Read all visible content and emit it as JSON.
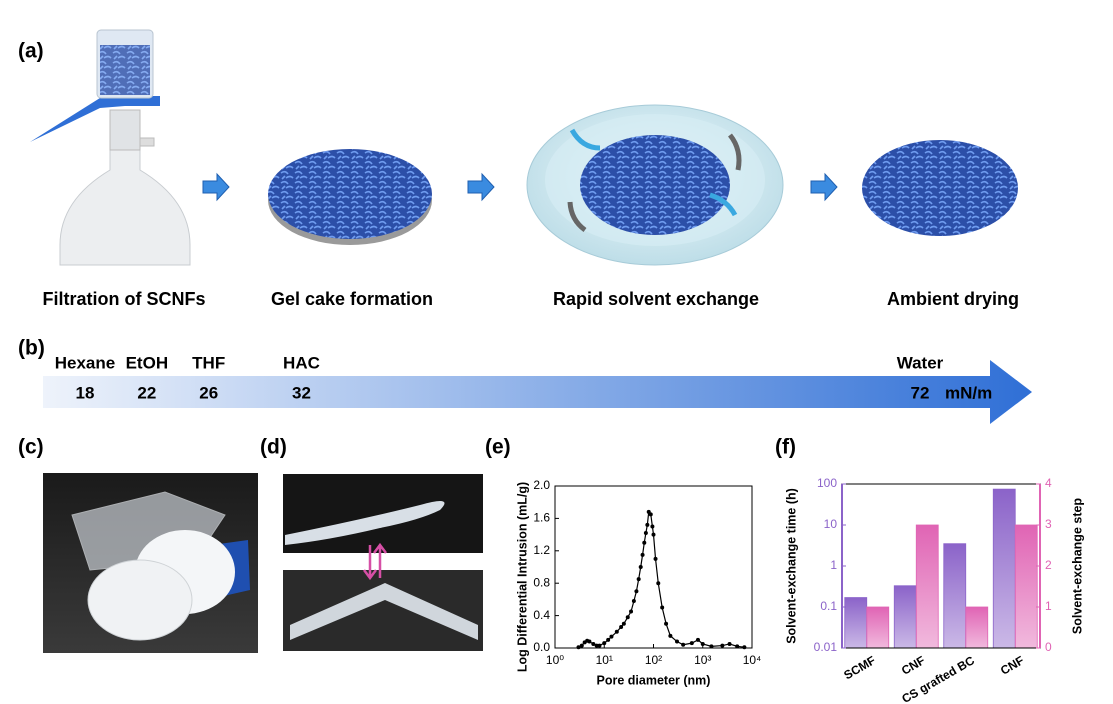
{
  "panels": {
    "a": {
      "label": "(a)",
      "steps": [
        "Filtration of SCNFs",
        "Gel cake formation",
        "Rapid solvent exchange",
        "Ambient drying"
      ]
    },
    "b": {
      "label": "(b)",
      "solvents": [
        "Hexane",
        "EtOH",
        "THF",
        "HAC",
        "Water"
      ],
      "surface_tension": [
        18,
        22,
        26,
        32,
        72
      ],
      "unit": "mN/m"
    },
    "c": {
      "label": "(c)"
    },
    "d": {
      "label": "(d)"
    },
    "e": {
      "label": "(e)"
    },
    "f": {
      "label": "(f)"
    }
  },
  "chart_data": [
    {
      "type": "line",
      "xlabel": "Pore diameter (nm)",
      "ylabel": "Log Differential Intrusion (mL/g)",
      "xscale": "log",
      "color": "#000000",
      "x": [
        3,
        3.5,
        4,
        4.5,
        5,
        6,
        7,
        8,
        10,
        12,
        14,
        18,
        22,
        25,
        30,
        35,
        40,
        45,
        50,
        55,
        60,
        65,
        70,
        75,
        80,
        88,
        95,
        100,
        110,
        125,
        150,
        180,
        220,
        300,
        400,
        600,
        800,
        1000,
        1500,
        2500,
        3500,
        5000,
        7000
      ],
      "values": [
        0.01,
        0.03,
        0.07,
        0.09,
        0.08,
        0.05,
        0.03,
        0.03,
        0.06,
        0.1,
        0.14,
        0.2,
        0.26,
        0.3,
        0.38,
        0.45,
        0.58,
        0.7,
        0.85,
        1.0,
        1.15,
        1.3,
        1.42,
        1.52,
        1.68,
        1.65,
        1.5,
        1.4,
        1.1,
        0.8,
        0.5,
        0.3,
        0.15,
        0.08,
        0.04,
        0.06,
        0.1,
        0.05,
        0.02,
        0.03,
        0.05,
        0.02,
        0.01
      ],
      "xlim": [
        1,
        10000
      ],
      "xticks": [
        {
          "value": 1,
          "label": "10⁰"
        },
        {
          "value": 10,
          "label": "10¹"
        },
        {
          "value": 100,
          "label": "10²"
        },
        {
          "value": 1000,
          "label": "10³"
        },
        {
          "value": 10000,
          "label": "10⁴"
        }
      ],
      "ylim": [
        0,
        2
      ],
      "yticks": [
        {
          "value": 0,
          "label": "0.0"
        },
        0.4,
        0.8,
        1.2,
        1.6,
        {
          "value": 2,
          "label": "2.0"
        }
      ]
    },
    {
      "type": "bar",
      "ylabel": "Solvent-exchange time (h)",
      "y2label": "Solvent-exchange step",
      "yscale": "log",
      "categories": [
        "SCMF",
        "CNF",
        "CS grafted BC",
        "CNF"
      ],
      "series": [
        {
          "color": "#8b63c9",
          "values": [
            0.17,
            0.33,
            3.5,
            75
          ]
        },
        {
          "color": "#e064b4",
          "axis": "y2",
          "values": [
            1,
            3,
            1,
            3
          ]
        }
      ],
      "ylim": [
        0.01,
        100
      ],
      "yticks": [
        0.01,
        0.1,
        1,
        10,
        100
      ],
      "y2lim": [
        0,
        4
      ],
      "y2ticks": [
        0,
        1,
        2,
        3,
        4
      ]
    }
  ]
}
